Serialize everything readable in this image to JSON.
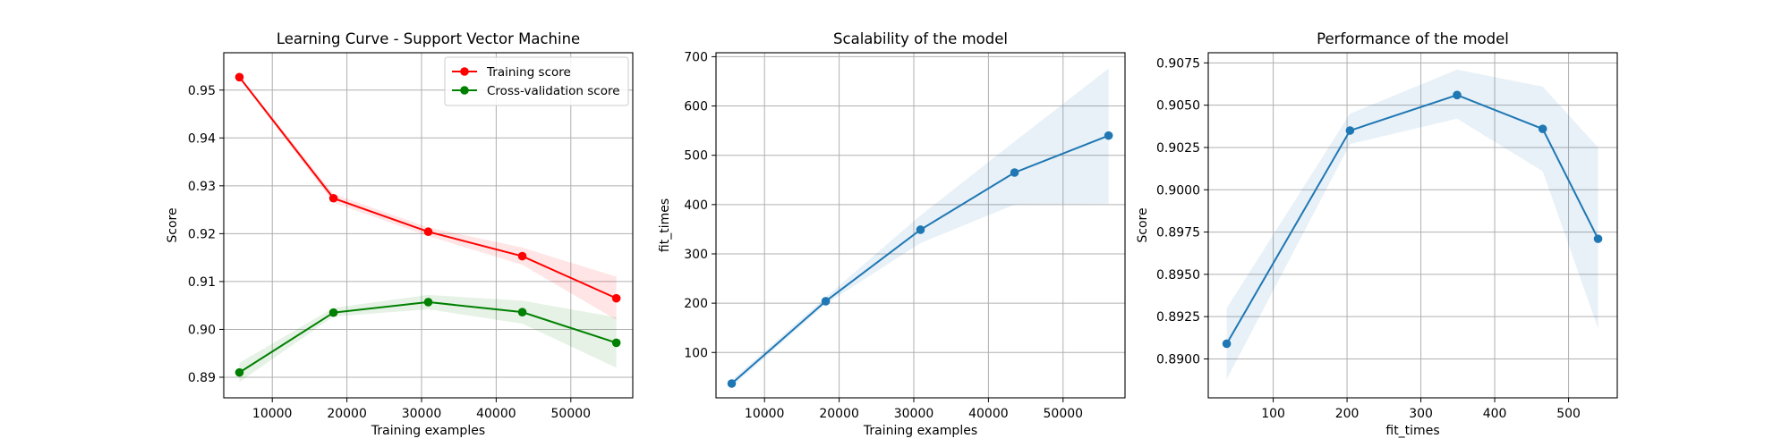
{
  "chart_data": [
    {
      "type": "line",
      "title": "Learning Curve - Support Vector Machine",
      "xlabel": "Training examples",
      "ylabel": "Score",
      "xlim": [
        3500,
        58300
      ],
      "ylim": [
        0.8857,
        0.9578
      ],
      "xticks": [
        10000,
        20000,
        30000,
        40000,
        50000
      ],
      "xtick_labels": [
        "10000",
        "20000",
        "30000",
        "40000",
        "50000"
      ],
      "yticks": [
        0.89,
        0.9,
        0.91,
        0.92,
        0.93,
        0.94,
        0.95
      ],
      "ytick_labels": [
        "0.89",
        "0.90",
        "0.91",
        "0.92",
        "0.93",
        "0.94",
        "0.95"
      ],
      "grid": true,
      "legend": "upper right",
      "series": [
        {
          "name": "Training score",
          "color": "#ff0000",
          "band_color": "#ff0000",
          "x": [
            5600,
            18200,
            30900,
            43500,
            56100
          ],
          "values": [
            0.9527,
            0.9274,
            0.9204,
            0.9153,
            0.9065
          ],
          "band_lower": [
            0.9524,
            0.9265,
            0.9195,
            0.9135,
            0.902
          ],
          "band_upper": [
            0.953,
            0.9283,
            0.9213,
            0.9171,
            0.911
          ]
        },
        {
          "name": "Cross-validation score",
          "color": "#008000",
          "band_color": "#008000",
          "x": [
            5600,
            18200,
            30900,
            43500,
            56100
          ],
          "values": [
            0.891,
            0.9035,
            0.9057,
            0.9036,
            0.8972
          ],
          "band_lower": [
            0.889,
            0.9027,
            0.9042,
            0.9012,
            0.892
          ],
          "band_upper": [
            0.893,
            0.9045,
            0.9072,
            0.906,
            0.9025
          ]
        }
      ]
    },
    {
      "type": "line",
      "title": "Scalability of the model",
      "xlabel": "Training examples",
      "ylabel": "fit_times",
      "xlim": [
        3500,
        58300
      ],
      "ylim": [
        8,
        708
      ],
      "xticks": [
        10000,
        20000,
        30000,
        40000,
        50000
      ],
      "xtick_labels": [
        "10000",
        "20000",
        "30000",
        "40000",
        "50000"
      ],
      "yticks": [
        100,
        200,
        300,
        400,
        500,
        600,
        700
      ],
      "ytick_labels": [
        "100",
        "200",
        "300",
        "400",
        "500",
        "600",
        "700"
      ],
      "grid": true,
      "series": [
        {
          "color": "#1f77b4",
          "band_color": "#1f77b4",
          "x": [
            5600,
            18200,
            30900,
            43500,
            56100
          ],
          "values": [
            37,
            204,
            349,
            465,
            540
          ],
          "band_lower": [
            30,
            198,
            322,
            400,
            402
          ],
          "band_upper": [
            44,
            212,
            378,
            528,
            676
          ]
        }
      ]
    },
    {
      "type": "line",
      "title": "Performance of the model",
      "xlabel": "fit_times",
      "ylabel": "Score",
      "xlim": [
        12,
        566
      ],
      "ylim": [
        0.8877,
        0.9081
      ],
      "xticks": [
        100,
        200,
        300,
        400,
        500
      ],
      "xtick_labels": [
        "100",
        "200",
        "300",
        "400",
        "500"
      ],
      "yticks": [
        0.89,
        0.8925,
        0.895,
        0.8975,
        0.9,
        0.9025,
        0.905,
        0.9075
      ],
      "ytick_labels": [
        "0.8900",
        "0.8925",
        "0.8950",
        "0.8975",
        "0.9000",
        "0.9025",
        "0.9050",
        "0.9075"
      ],
      "grid": true,
      "series": [
        {
          "color": "#1f77b4",
          "band_color": "#1f77b4",
          "x": [
            37,
            204,
            349,
            465,
            540
          ],
          "values": [
            0.8909,
            0.9035,
            0.9056,
            0.9036,
            0.8971
          ],
          "band_lower": [
            0.8888,
            0.9027,
            0.9042,
            0.9011,
            0.8918
          ],
          "band_upper": [
            0.893,
            0.9045,
            0.9071,
            0.9061,
            0.9025
          ]
        }
      ]
    }
  ]
}
